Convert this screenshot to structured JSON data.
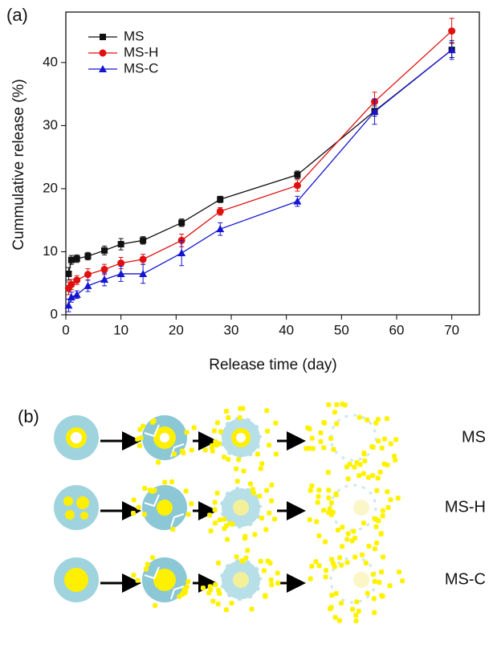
{
  "chart_data": {
    "type": "line",
    "panel_label": "(a)",
    "x_label": "Release time (day)",
    "y_label": "Cummulative release (%)",
    "x": [
      0.5,
      1,
      2,
      4,
      7,
      10,
      14,
      21,
      28,
      42,
      56,
      70
    ],
    "series": [
      {
        "name": "MS",
        "color": "#111111",
        "marker": "square",
        "values": [
          6.5,
          8.7,
          8.9,
          9.3,
          10.2,
          11.2,
          11.8,
          14.6,
          18.3,
          22.2,
          32.3,
          42.0
        ],
        "errors": [
          1.0,
          0.7,
          0.6,
          0.6,
          0.7,
          0.9,
          0.6,
          0.6,
          0.5,
          0.6,
          0.8,
          1.2
        ]
      },
      {
        "name": "MS-H",
        "color": "#e01010",
        "marker": "circle",
        "values": [
          4.2,
          4.8,
          5.5,
          6.4,
          7.2,
          8.2,
          8.8,
          11.8,
          16.4,
          20.5,
          33.8,
          45.0
        ],
        "errors": [
          1.0,
          0.8,
          0.7,
          0.9,
          0.8,
          0.9,
          0.8,
          1.0,
          0.6,
          0.9,
          1.5,
          2.0
        ]
      },
      {
        "name": "MS-C",
        "color": "#1515d0",
        "marker": "triangle",
        "values": [
          1.5,
          2.8,
          3.2,
          4.6,
          5.6,
          6.5,
          6.5,
          9.8,
          13.6,
          18.0,
          32.2,
          42.0
        ],
        "errors": [
          1.0,
          0.8,
          0.6,
          0.9,
          1.0,
          1.2,
          1.5,
          2.0,
          1.0,
          0.8,
          2.0,
          1.5
        ]
      }
    ],
    "xlim": [
      0,
      75
    ],
    "xticks": [
      0,
      10,
      20,
      30,
      40,
      50,
      60,
      70
    ],
    "ylim": [
      0,
      48
    ],
    "yticks": [
      0,
      10,
      20,
      30,
      40
    ],
    "legend": "upper-left"
  },
  "schematic": {
    "label": "(b)",
    "rows": [
      "MS",
      "MS-H",
      "MS-C"
    ]
  }
}
